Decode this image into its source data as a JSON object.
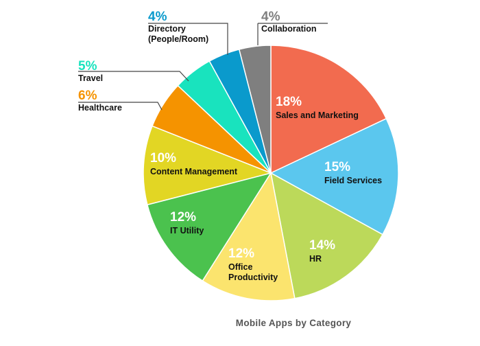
{
  "chart_data": {
    "type": "pie",
    "title": "Mobile Apps by Category",
    "unit": "%",
    "slices": [
      {
        "label": [
          "Sales and Marketing"
        ],
        "value": 18,
        "color": "#F26B4F"
      },
      {
        "label": [
          "Field Services"
        ],
        "value": 15,
        "color": "#5BC7EE"
      },
      {
        "label": [
          "HR"
        ],
        "value": 14,
        "color": "#BCD95A"
      },
      {
        "label": [
          "Office",
          "Productivity"
        ],
        "value": 12,
        "color": "#FBE46E"
      },
      {
        "label": [
          "IT Utility"
        ],
        "value": 12,
        "color": "#4BC24E"
      },
      {
        "label": [
          "Content Management"
        ],
        "value": 10,
        "color": "#E2D624"
      },
      {
        "label": [
          "Healthcare"
        ],
        "value": 6,
        "color": "#F59300"
      },
      {
        "label": [
          "Travel"
        ],
        "value": 5,
        "color": "#19E3BE"
      },
      {
        "label": [
          "Directory",
          "(People/Room)"
        ],
        "value": 4,
        "color": "#0A9ACC"
      },
      {
        "label": [
          "Collaboration"
        ],
        "value": 4,
        "color": "#7F7F7F"
      }
    ]
  }
}
